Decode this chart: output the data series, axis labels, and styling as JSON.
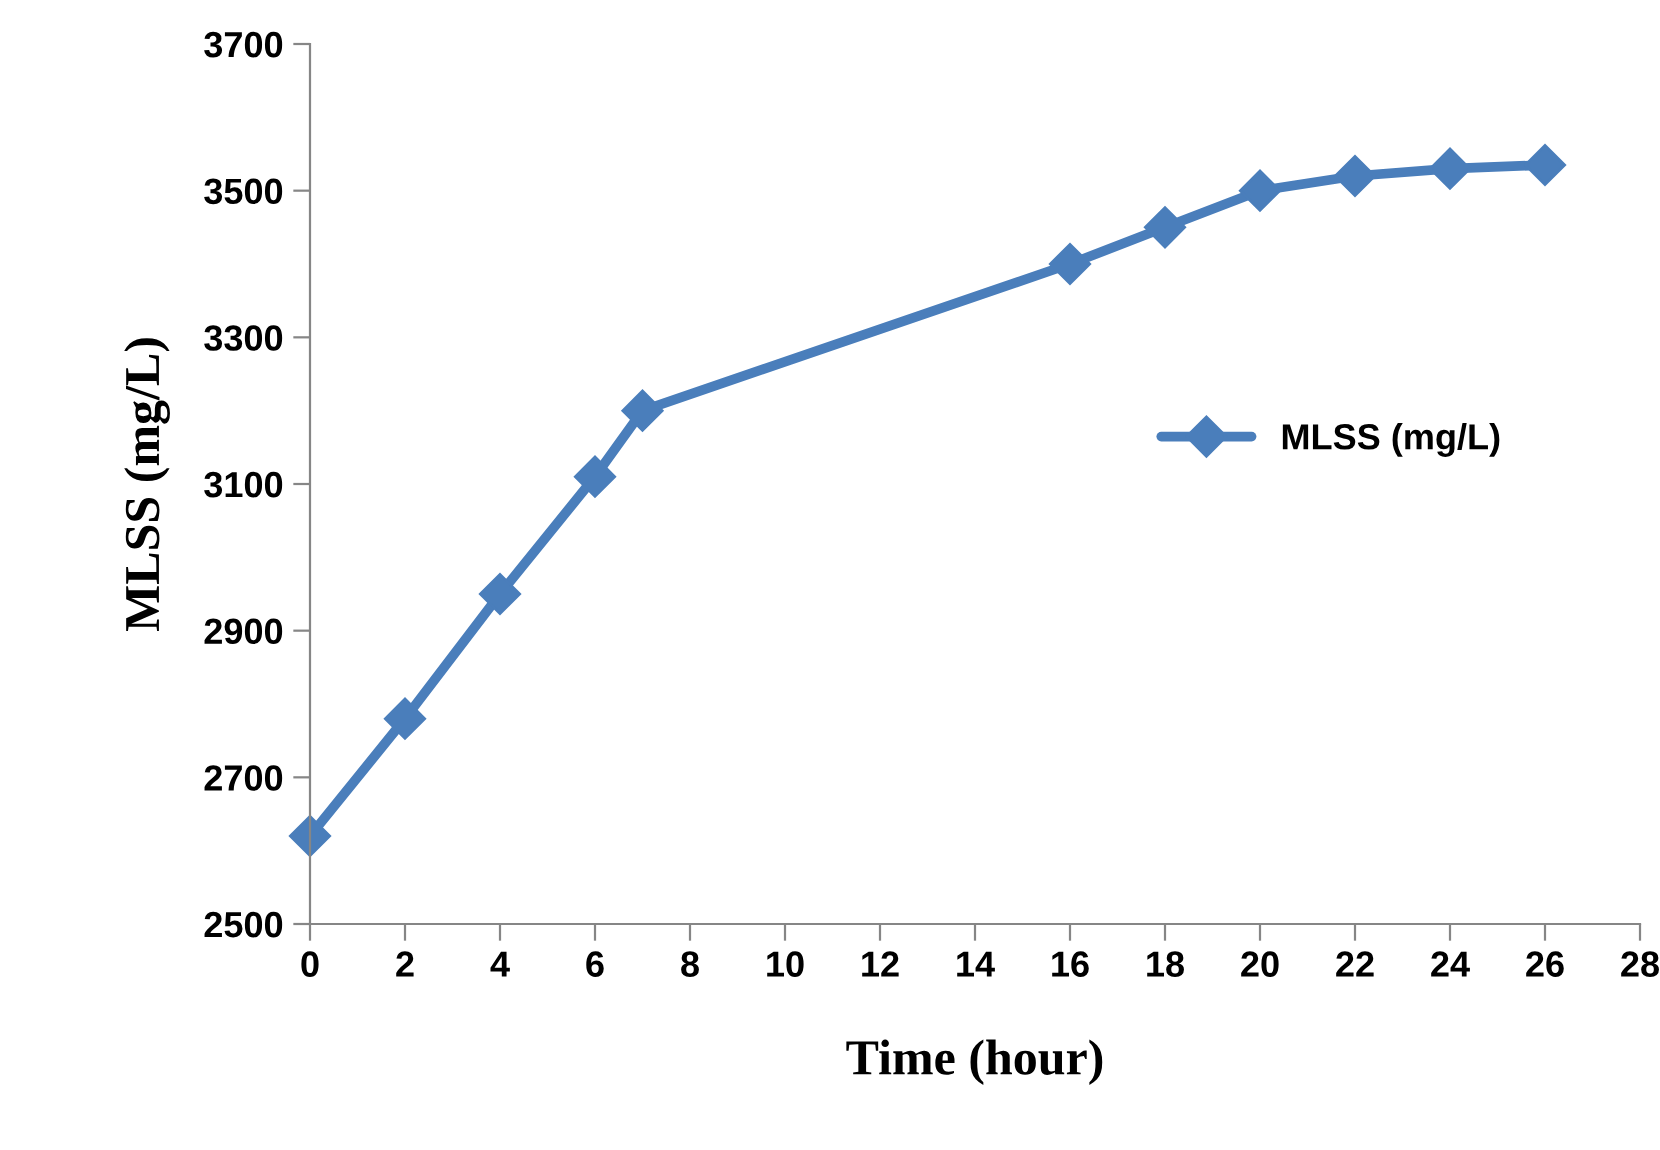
{
  "chart_data": {
    "type": "line",
    "xlabel": "Time (hour)",
    "ylabel": "MLSS (mg/L)",
    "x": [
      0,
      2,
      4,
      6,
      7,
      16,
      18,
      20,
      22,
      24,
      26
    ],
    "series": [
      {
        "name": "MLSS (mg/L)",
        "color": "#4a7ebb",
        "values": [
          2620,
          2780,
          2950,
          3110,
          3200,
          3400,
          3450,
          3500,
          3520,
          3530,
          3535
        ]
      }
    ],
    "xlim": [
      0,
      28
    ],
    "xticks": [
      0,
      2,
      4,
      6,
      8,
      10,
      12,
      14,
      16,
      18,
      20,
      22,
      24,
      26,
      28
    ],
    "ylim": [
      2500,
      3700
    ],
    "yticks": [
      2500,
      2700,
      2900,
      3100,
      3300,
      3500,
      3700
    ],
    "grid": false,
    "legend": "right",
    "marker": "diamond",
    "line_style": "solid"
  }
}
